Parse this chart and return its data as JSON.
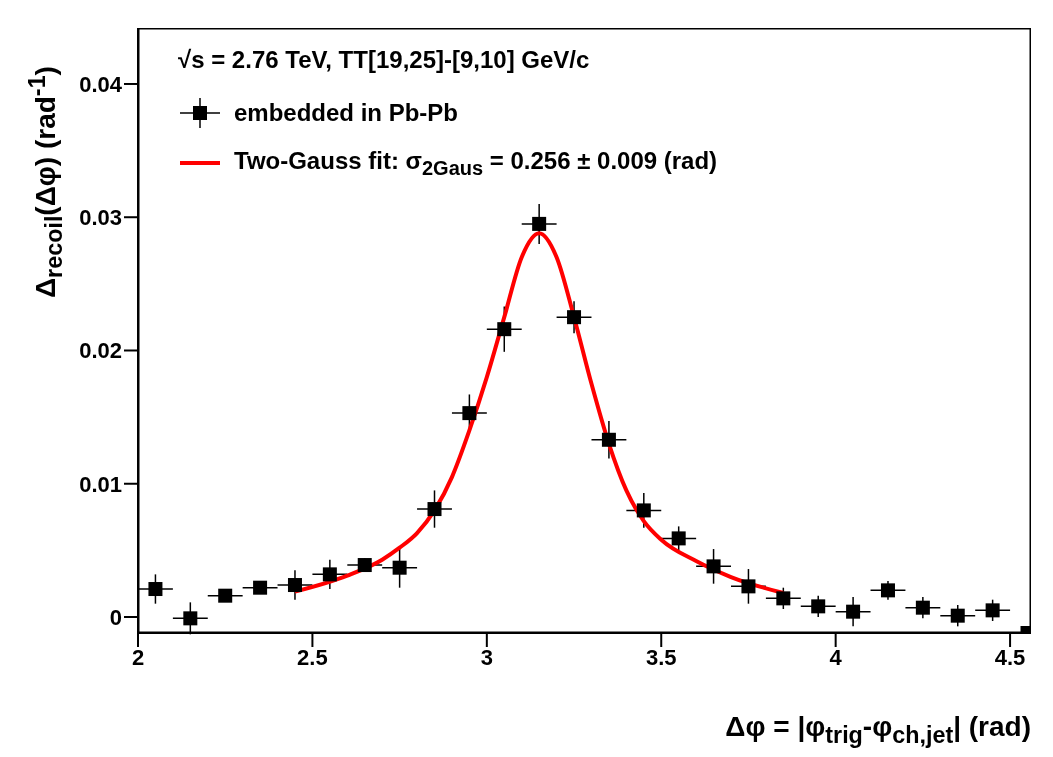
{
  "chart_data": {
    "type": "scatter",
    "annotations": [
      "√s = 2.76 TeV, TT[19,25]-[9,10] GeV/c"
    ],
    "xlabel": "Δφ = |φ$_{trig}$-φ$_{ch,jet}$| (rad)",
    "ylabel": "Δ$_{recoil}$(Δφ) (rad$^{-1}$)",
    "xlim": [
      2,
      4.56
    ],
    "xticks": [
      2,
      2.5,
      3,
      3.5,
      4,
      4.5
    ],
    "ylim": [
      -0.0012,
      0.0442
    ],
    "yticks": [
      0,
      0.01,
      0.02,
      0.03,
      0.04
    ],
    "grid": false,
    "legend": "top left",
    "marker": "square",
    "series": [
      {
        "name": "embedded in Pb-Pb",
        "color": "#000000",
        "x": [
          2.05,
          2.15,
          2.25,
          2.35,
          2.45,
          2.55,
          2.65,
          2.75,
          2.85,
          2.95,
          3.05,
          3.15,
          3.25,
          3.35,
          3.45,
          3.55,
          3.65,
          3.75,
          3.85,
          3.95,
          4.05,
          4.15,
          4.25,
          4.35,
          4.45,
          4.55
        ],
        "values": [
          0.0021,
          -0.0001,
          0.0016,
          0.0022,
          0.0024,
          0.0032,
          0.0039,
          0.0037,
          0.0081,
          0.0153,
          0.0216,
          0.0295,
          0.0225,
          0.0133,
          0.008,
          0.0059,
          0.0038,
          0.0023,
          0.0014,
          0.0008,
          0.0004,
          0.002,
          0.0007,
          0.0001,
          0.0005,
          -0.0012
        ],
        "errors": [
          0.0011,
          0.0012,
          0.0004,
          0.0004,
          0.0011,
          0.0011,
          0.0005,
          0.0015,
          0.0014,
          0.0014,
          0.0017,
          0.0015,
          0.0012,
          0.0014,
          0.0013,
          0.0009,
          0.0013,
          0.0013,
          0.0008,
          0.0008,
          0.0011,
          0.0007,
          0.0008,
          0.0008,
          0.0008,
          null
        ],
        "xerrors": [
          0.05,
          0.05,
          0.05,
          0.05,
          0.05,
          0.05,
          0.05,
          0.05,
          0.05,
          0.05,
          0.05,
          0.05,
          0.05,
          0.05,
          0.05,
          0.05,
          0.05,
          0.05,
          0.05,
          0.05,
          0.05,
          0.05,
          0.05,
          0.05,
          0.05,
          0.01
        ]
      },
      {
        "name": "Two-Gauss fit: σ$_{2Gaus}$ = 0.256 ± 0.009 (rad)",
        "type": "line",
        "color": "#ff0000",
        "line_style": "solid",
        "marker": "none",
        "x": [
          2.45,
          2.6,
          2.7,
          2.75,
          2.8,
          2.85,
          2.9,
          2.95,
          3.0,
          3.05,
          3.1,
          3.15,
          3.2,
          3.25,
          3.3,
          3.35,
          3.4,
          3.45,
          3.5,
          3.6,
          3.7,
          3.85
        ],
        "values": [
          0.0019,
          0.0031,
          0.0043,
          0.0052,
          0.0063,
          0.008,
          0.0105,
          0.014,
          0.018,
          0.0225,
          0.027,
          0.0288,
          0.027,
          0.0225,
          0.0175,
          0.013,
          0.0095,
          0.0072,
          0.0058,
          0.0042,
          0.003,
          0.0018
        ]
      }
    ]
  }
}
